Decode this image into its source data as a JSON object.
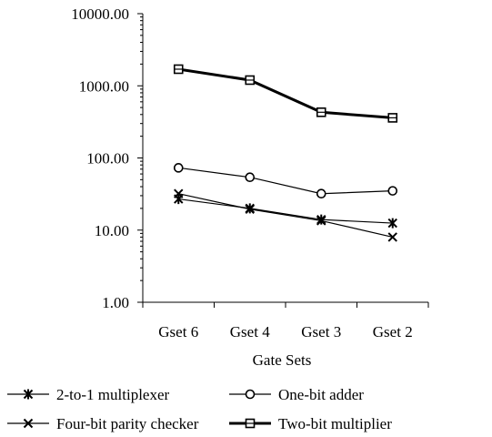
{
  "chart_data": {
    "type": "line",
    "yscale": "log",
    "ylim": [
      1,
      10000
    ],
    "y_ticks": [
      "1.00",
      "10.00",
      "100.00",
      "1000.00",
      "10000.00"
    ],
    "xlabel": "Gate Sets",
    "ylabel": "",
    "categories": [
      "Gset 6",
      "Gset 4",
      "Gset 3",
      "Gset 2"
    ],
    "grid": false,
    "legend_position": "bottom",
    "series": [
      {
        "name": "2-to-1 multiplexer",
        "values": [
          27,
          20,
          14,
          12.5
        ],
        "marker": "star",
        "line_weight": "thin"
      },
      {
        "name": "One-bit adder",
        "values": [
          73,
          54,
          32,
          35
        ],
        "marker": "circle",
        "line_weight": "thin"
      },
      {
        "name": "Four-bit parity checker",
        "values": [
          32,
          19.5,
          13.5,
          8
        ],
        "marker": "x",
        "line_weight": "thin"
      },
      {
        "name": "Two-bit multiplier",
        "values": [
          1700,
          1200,
          430,
          360
        ],
        "marker": "square",
        "line_weight": "thick"
      }
    ]
  }
}
